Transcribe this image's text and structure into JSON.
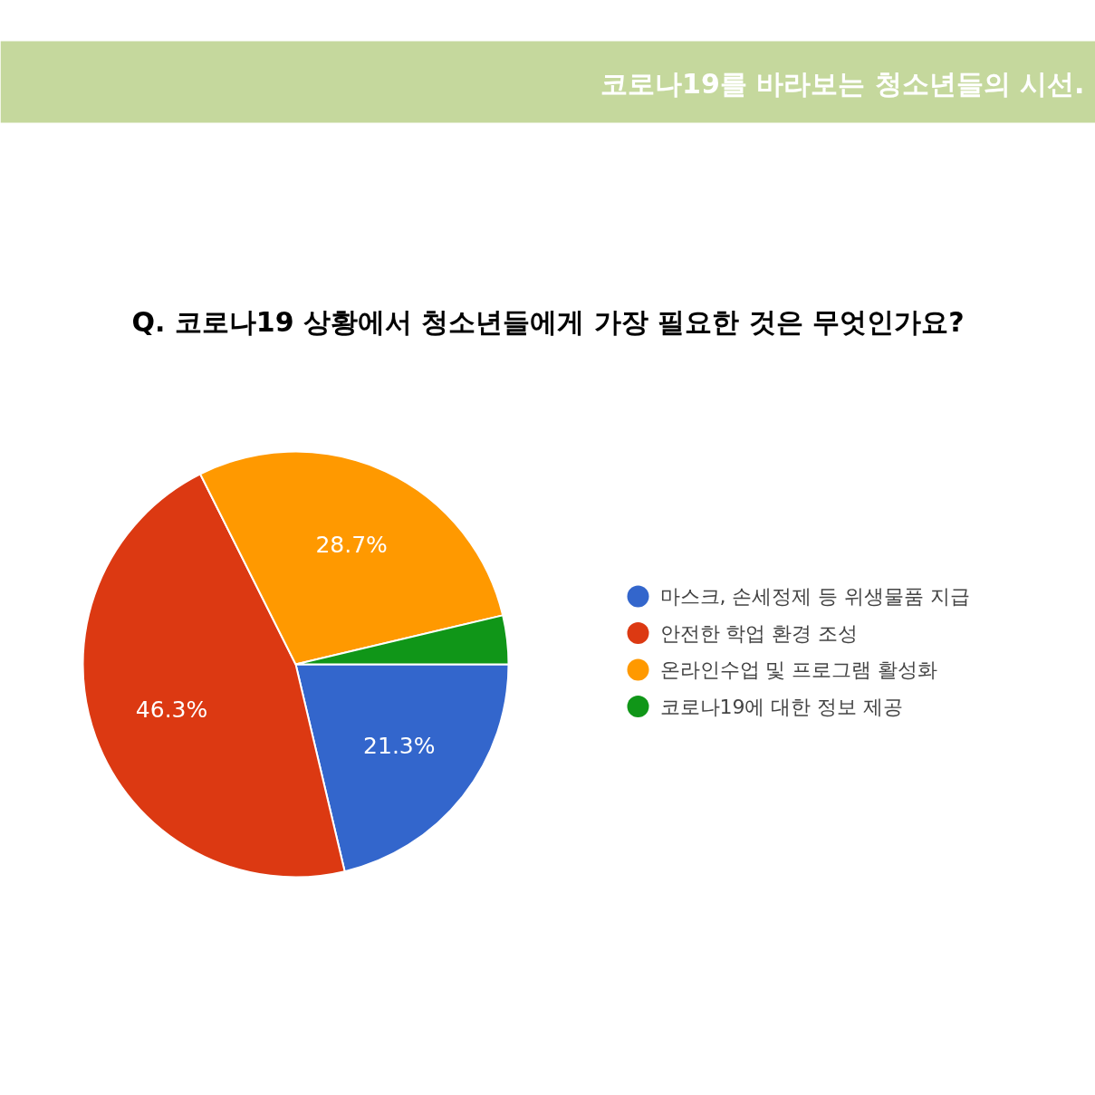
{
  "chart_data": {
    "type": "pie",
    "title": "Q. 코로나19 상황에서 청소년들에게 가장 필요한 것은 무엇인가요?",
    "annotations": [
      "코로나19를 바라보는 청소년들의 시선."
    ],
    "categories": [
      "마스크, 손세정제 등 위생물품 지급",
      "안전한 학업 환경 조성",
      "온라인수업 및 프로그램 활성화",
      "코로나19에 대한 정보 제공"
    ],
    "values": [
      21.3,
      46.3,
      28.7,
      3.7
    ],
    "colors": [
      "#3366cc",
      "#dc3912",
      "#ff9900",
      "#109618"
    ],
    "value_labels": [
      "21.3%",
      "46.3%",
      "28.7%",
      null
    ],
    "legend": "right"
  }
}
